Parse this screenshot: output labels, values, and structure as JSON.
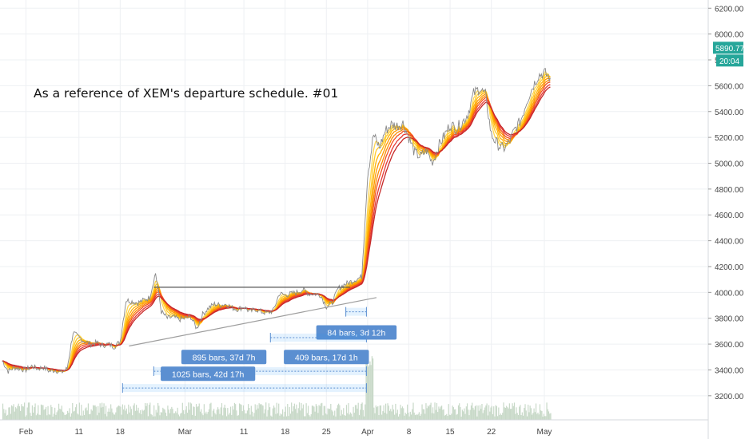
{
  "chart_data": {
    "type": "line",
    "title": "",
    "annotation": "As a reference of XEM's departure schedule.  #01",
    "xlabel": "",
    "ylabel": "",
    "grid": true,
    "legend": "none",
    "y_axis_position": "right",
    "ylim": [
      3100,
      6350
    ],
    "y_ticks": [
      3200,
      3400,
      3600,
      3800,
      4000,
      4200,
      4400,
      4600,
      4800,
      5000,
      5200,
      5400,
      5600,
      5800,
      6000,
      6200
    ],
    "y_tick_labels": [
      "3200.00",
      "3400.00",
      "3600.00",
      "3800.00",
      "4000.00",
      "4200.00",
      "4400.00",
      "4600.00",
      "4800.00",
      "5000.00",
      "5200.00",
      "5400.00",
      "5600.00",
      "5800.00",
      "6000.00",
      "6200.00"
    ],
    "xlim_day": [
      1,
      122
    ],
    "x_ticks": [
      {
        "day": 33,
        "label": "Feb"
      },
      {
        "day": 42,
        "label": "11"
      },
      {
        "day": 49,
        "label": "18"
      },
      {
        "day": 60,
        "label": "Mar"
      },
      {
        "day": 70,
        "label": "11"
      },
      {
        "day": 77,
        "label": "18"
      },
      {
        "day": 84,
        "label": "25"
      },
      {
        "day": 91,
        "label": "Apr"
      },
      {
        "day": 98,
        "label": "8"
      },
      {
        "day": 105,
        "label": "15"
      },
      {
        "day": 112,
        "label": "22"
      },
      {
        "day": 121,
        "label": "May"
      }
    ],
    "price_series": [
      [
        29,
        3470
      ],
      [
        30,
        3390
      ],
      [
        31,
        3420
      ],
      [
        32,
        3410
      ],
      [
        33,
        3400
      ],
      [
        34,
        3430
      ],
      [
        35,
        3410
      ],
      [
        36,
        3420
      ],
      [
        37,
        3390
      ],
      [
        38,
        3400
      ],
      [
        39,
        3380
      ],
      [
        40,
        3410
      ],
      [
        41,
        3690
      ],
      [
        42,
        3650
      ],
      [
        43,
        3620
      ],
      [
        44,
        3600
      ],
      [
        45,
        3610
      ],
      [
        46,
        3590
      ],
      [
        47,
        3600
      ],
      [
        48,
        3580
      ],
      [
        49,
        3620
      ],
      [
        50,
        3940
      ],
      [
        51,
        3930
      ],
      [
        52,
        3920
      ],
      [
        53,
        3940
      ],
      [
        54,
        3960
      ],
      [
        55,
        4150
      ],
      [
        56,
        3850
      ],
      [
        57,
        3800
      ],
      [
        58,
        3810
      ],
      [
        59,
        3790
      ],
      [
        60,
        3800
      ],
      [
        61,
        3810
      ],
      [
        62,
        3720
      ],
      [
        63,
        3830
      ],
      [
        64,
        3880
      ],
      [
        65,
        3910
      ],
      [
        66,
        3900
      ],
      [
        67,
        3910
      ],
      [
        68,
        3880
      ],
      [
        69,
        3870
      ],
      [
        70,
        3890
      ],
      [
        71,
        3850
      ],
      [
        72,
        3870
      ],
      [
        73,
        3850
      ],
      [
        74,
        3840
      ],
      [
        75,
        3860
      ],
      [
        76,
        3990
      ],
      [
        77,
        3980
      ],
      [
        78,
        3990
      ],
      [
        79,
        4000
      ],
      [
        80,
        4020
      ],
      [
        81,
        3990
      ],
      [
        82,
        3990
      ],
      [
        83,
        3980
      ],
      [
        84,
        3890
      ],
      [
        85,
        3920
      ],
      [
        86,
        4030
      ],
      [
        87,
        4060
      ],
      [
        88,
        4080
      ],
      [
        89,
        4100
      ],
      [
        90,
        4120
      ],
      [
        91,
        4900
      ],
      [
        92,
        5220
      ],
      [
        93,
        5120
      ],
      [
        94,
        5250
      ],
      [
        95,
        5300
      ],
      [
        96,
        5290
      ],
      [
        97,
        5310
      ],
      [
        98,
        5200
      ],
      [
        99,
        5080
      ],
      [
        100,
        5050
      ],
      [
        101,
        5100
      ],
      [
        102,
        5000
      ],
      [
        103,
        5130
      ],
      [
        104,
        5210
      ],
      [
        105,
        5300
      ],
      [
        106,
        5270
      ],
      [
        107,
        5310
      ],
      [
        108,
        5380
      ],
      [
        109,
        5540
      ],
      [
        110,
        5580
      ],
      [
        111,
        5530
      ],
      [
        112,
        5220
      ],
      [
        113,
        5150
      ],
      [
        114,
        5110
      ],
      [
        115,
        5160
      ],
      [
        116,
        5260
      ],
      [
        117,
        5330
      ],
      [
        118,
        5480
      ],
      [
        119,
        5590
      ],
      [
        120,
        5680
      ],
      [
        121,
        5700
      ],
      [
        122,
        5660
      ]
    ],
    "ribbon_periods": [
      5,
      8,
      11,
      14,
      17,
      20,
      24,
      28
    ],
    "ribbon_colors": [
      "#ffd54f",
      "#ffca28",
      "#ffb300",
      "#ff9800",
      "#fb8c00",
      "#f4511e",
      "#e53935",
      "#c62828"
    ],
    "price_color": "#888888",
    "volume_color": "#c8d9c8",
    "resistance_line": {
      "x1": 54.7,
      "y1": 4040,
      "x2": 88,
      "y2": 4040,
      "color": "#555555"
    },
    "support_line": {
      "x1": 50.5,
      "y1": 3585,
      "x2": 92.5,
      "y2": 3960,
      "color": "#9e9e9e"
    },
    "ranges": [
      {
        "label": "84 bars, 3d 12h",
        "start": 87.3,
        "end": 90.8,
        "y": 3850,
        "label_y": 3690,
        "label_x": 89.1
      },
      {
        "label": "409 bars, 17d 1h",
        "start": 74.5,
        "end": 90.8,
        "y": 3650,
        "label_y": 3500,
        "label_x": 84.0
      },
      {
        "label": "895 bars, 37d 7h",
        "start": 54.7,
        "end": 90.8,
        "y": 3390,
        "label_y": 3500,
        "label_x": 66.6
      },
      {
        "label": "1025 bars, 42d 17h",
        "start": 49.4,
        "end": 90.8,
        "y": 3260,
        "label_y": 3370,
        "label_x": 63.9
      }
    ],
    "last_price": {
      "label": "5890.77",
      "countdown": "20:04",
      "value": 5890.77,
      "color": "#26a69a"
    }
  }
}
